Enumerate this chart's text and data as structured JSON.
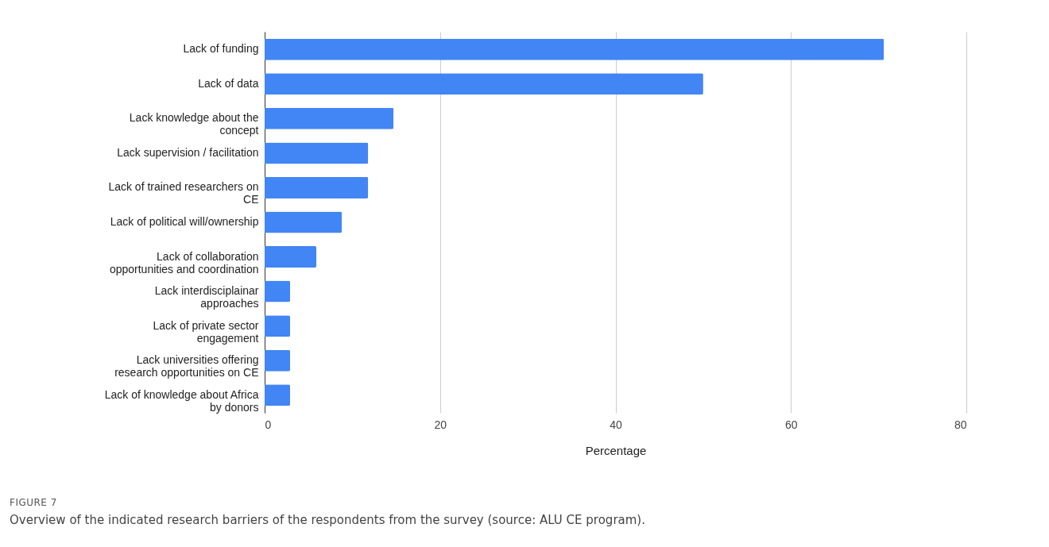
{
  "chart_data": {
    "type": "bar",
    "orientation": "horizontal",
    "categories": [
      "Lack of funding",
      "Lack of data",
      "Lack knowledge about the concept",
      "Lack supervision / facilitation",
      "Lack of trained researchers on CE",
      "Lack of political will/ownership",
      "Lack of collaboration opportunities and coordination",
      "Lack interdisciplainar approaches",
      "Lack of private sector engagement",
      "Lack universities offering research opportunities on CE",
      "Lack of knowledge about Africa by donors"
    ],
    "values": [
      70.6,
      50,
      14.7,
      11.8,
      11.8,
      8.8,
      5.9,
      2.9,
      2.9,
      2.9,
      2.9
    ],
    "color": "#4285f4",
    "xlim": [
      0,
      80
    ],
    "xticks": [
      0,
      20,
      40,
      60,
      80
    ],
    "xlabel": "Percentage",
    "grid": "x",
    "annotations": [
      "FIGURE 7",
      "Overview of the indicated research barriers of the respondents from the survey (source: ALU CE program)."
    ]
  }
}
